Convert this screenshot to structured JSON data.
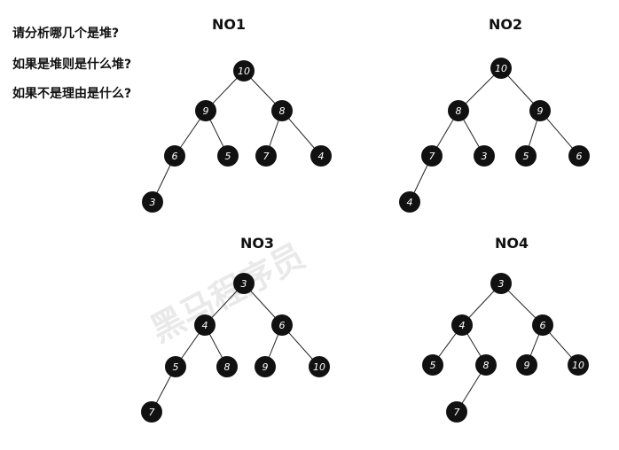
{
  "questions": [
    "请分析哪几个是堆?",
    "如果是堆则是什么堆?",
    "如果不是理由是什么?"
  ],
  "watermark": "黑马程序员",
  "trees": [
    {
      "title": "NO1",
      "nodes": [
        {
          "id": "a",
          "label": "10"
        },
        {
          "id": "b",
          "label": "9"
        },
        {
          "id": "c",
          "label": "8"
        },
        {
          "id": "d",
          "label": "6"
        },
        {
          "id": "e",
          "label": "5"
        },
        {
          "id": "f",
          "label": "7"
        },
        {
          "id": "g",
          "label": "4"
        },
        {
          "id": "h",
          "label": "3"
        }
      ],
      "edges": [
        [
          "a",
          "b"
        ],
        [
          "a",
          "c"
        ],
        [
          "b",
          "d"
        ],
        [
          "b",
          "e"
        ],
        [
          "c",
          "f"
        ],
        [
          "c",
          "g"
        ],
        [
          "d",
          "h"
        ]
      ]
    },
    {
      "title": "NO2",
      "nodes": [
        {
          "id": "a",
          "label": "10"
        },
        {
          "id": "b",
          "label": "8"
        },
        {
          "id": "c",
          "label": "9"
        },
        {
          "id": "d",
          "label": "7"
        },
        {
          "id": "e",
          "label": "3"
        },
        {
          "id": "f",
          "label": "5"
        },
        {
          "id": "g",
          "label": "6"
        },
        {
          "id": "h",
          "label": "4"
        }
      ],
      "edges": [
        [
          "a",
          "b"
        ],
        [
          "a",
          "c"
        ],
        [
          "b",
          "d"
        ],
        [
          "b",
          "e"
        ],
        [
          "c",
          "f"
        ],
        [
          "c",
          "g"
        ],
        [
          "d",
          "h"
        ]
      ]
    },
    {
      "title": "NO3",
      "nodes": [
        {
          "id": "a",
          "label": "3"
        },
        {
          "id": "b",
          "label": "4"
        },
        {
          "id": "c",
          "label": "6"
        },
        {
          "id": "d",
          "label": "5"
        },
        {
          "id": "e",
          "label": "8"
        },
        {
          "id": "f",
          "label": "9"
        },
        {
          "id": "g",
          "label": "10"
        },
        {
          "id": "h",
          "label": "7"
        }
      ],
      "edges": [
        [
          "a",
          "b"
        ],
        [
          "a",
          "c"
        ],
        [
          "b",
          "d"
        ],
        [
          "b",
          "e"
        ],
        [
          "c",
          "f"
        ],
        [
          "c",
          "g"
        ],
        [
          "d",
          "h"
        ]
      ]
    },
    {
      "title": "NO4",
      "nodes": [
        {
          "id": "a",
          "label": "3"
        },
        {
          "id": "b",
          "label": "4"
        },
        {
          "id": "c",
          "label": "6"
        },
        {
          "id": "d",
          "label": "5"
        },
        {
          "id": "e",
          "label": "8"
        },
        {
          "id": "f",
          "label": "9"
        },
        {
          "id": "g",
          "label": "10"
        },
        {
          "id": "h",
          "label": "7"
        }
      ],
      "edges": [
        [
          "a",
          "b"
        ],
        [
          "a",
          "c"
        ],
        [
          "b",
          "d"
        ],
        [
          "b",
          "e"
        ],
        [
          "c",
          "f"
        ],
        [
          "c",
          "g"
        ],
        [
          "e",
          "h"
        ]
      ]
    }
  ]
}
